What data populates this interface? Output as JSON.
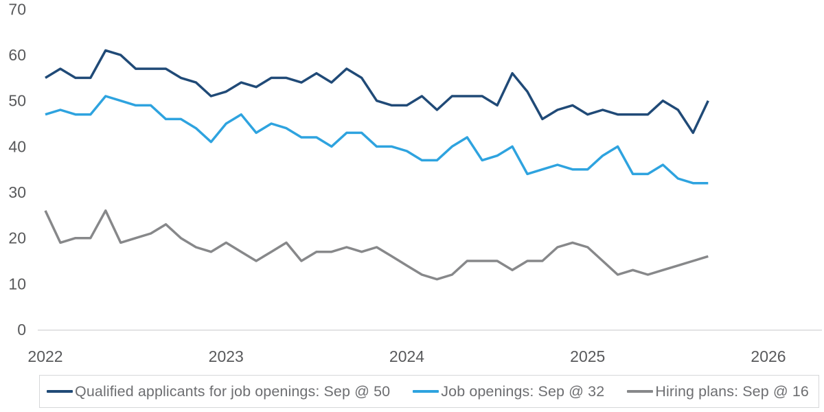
{
  "chart_data": {
    "type": "line",
    "title": "",
    "x_unit": "month",
    "x_range_start": "Jan 2022",
    "x_range_end": "Sep 2025",
    "x_tick_labels": [
      "2022",
      "2023",
      "2024",
      "2025",
      "2026"
    ],
    "y_ticks": [
      "0",
      "10",
      "20",
      "30",
      "40",
      "50",
      "60",
      "70"
    ],
    "ylim": [
      0,
      70
    ],
    "grid": false,
    "legend_position": "bottom",
    "axis_color": "#d9dadb",
    "tick_text_color": "#58595b",
    "series": [
      {
        "name": "Qualified applicants for job openings",
        "legend_label": "Qualified applicants for job openings: Sep @ 50",
        "color": "#204a77",
        "values": [
          55,
          57,
          55,
          55,
          61,
          60,
          57,
          57,
          57,
          55,
          54,
          51,
          52,
          54,
          53,
          55,
          55,
          54,
          56,
          54,
          57,
          55,
          50,
          49,
          49,
          51,
          48,
          51,
          51,
          51,
          49,
          56,
          52,
          46,
          48,
          49,
          47,
          48,
          47,
          47,
          47,
          50,
          48,
          43,
          50
        ]
      },
      {
        "name": "Job openings",
        "legend_label": "Job openings: Sep @ 32",
        "color": "#2ea3df",
        "values": [
          47,
          48,
          47,
          47,
          51,
          50,
          49,
          49,
          46,
          46,
          44,
          41,
          45,
          47,
          43,
          45,
          44,
          42,
          42,
          40,
          43,
          43,
          40,
          40,
          39,
          37,
          37,
          40,
          42,
          37,
          38,
          40,
          34,
          35,
          36,
          35,
          35,
          38,
          40,
          34,
          34,
          36,
          33,
          32,
          32
        ]
      },
      {
        "name": "Hiring plans",
        "legend_label": "Hiring plans: Sep @ 16",
        "color": "#87888a",
        "values": [
          26,
          19,
          20,
          20,
          26,
          19,
          20,
          21,
          23,
          20,
          18,
          17,
          19,
          17,
          15,
          17,
          19,
          15,
          17,
          17,
          18,
          17,
          18,
          16,
          14,
          12,
          11,
          12,
          15,
          15,
          15,
          13,
          15,
          15,
          18,
          19,
          18,
          15,
          12,
          13,
          12,
          13,
          14,
          15,
          16
        ]
      }
    ]
  }
}
